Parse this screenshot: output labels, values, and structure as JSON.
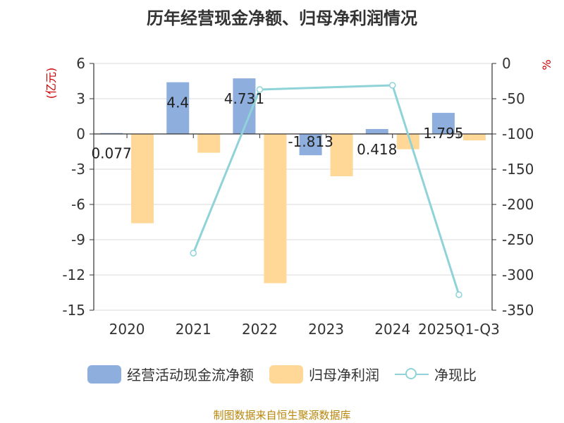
{
  "title": "历年经营现金净额、归母净利润情况",
  "source": "制图数据来自恒生聚源数据库",
  "colors": {
    "bar1": "#8eaedd",
    "bar2": "#ffd898",
    "line": "#8fd3d9",
    "axis_label": "#cc0000",
    "grid": "#d9d9d9"
  },
  "chart_data": {
    "type": "bar",
    "categories": [
      "2020",
      "2021",
      "2022",
      "2023",
      "2024",
      "2025Q1-Q3"
    ],
    "left_axis": {
      "label": "(亿元)",
      "ylim": [
        -15,
        6
      ],
      "ticks": [
        6,
        3,
        0,
        -3,
        -6,
        -9,
        -12,
        -15
      ]
    },
    "right_axis": {
      "label": "%",
      "ylim": [
        -350,
        0
      ],
      "ticks": [
        0,
        -50,
        -100,
        -150,
        -200,
        -250,
        -300,
        -350
      ]
    },
    "grid": true,
    "legend_position": "bottom",
    "series": [
      {
        "name": "经营活动现金流净额",
        "kind": "bar",
        "axis": "left",
        "values": [
          0.077,
          4.4,
          4.731,
          -1.813,
          0.418,
          1.795
        ],
        "labels": [
          "0.077",
          "4.4",
          "4.731",
          "-1.813",
          "0.418",
          "1.795"
        ]
      },
      {
        "name": "归母净利润",
        "kind": "bar",
        "axis": "left",
        "values": [
          -7.6,
          -1.6,
          -12.7,
          -3.6,
          -1.3,
          -0.55
        ]
      },
      {
        "name": "净现比",
        "kind": "line",
        "axis": "right",
        "values": [
          null,
          -269,
          -37,
          null,
          -31,
          -328
        ]
      }
    ]
  }
}
